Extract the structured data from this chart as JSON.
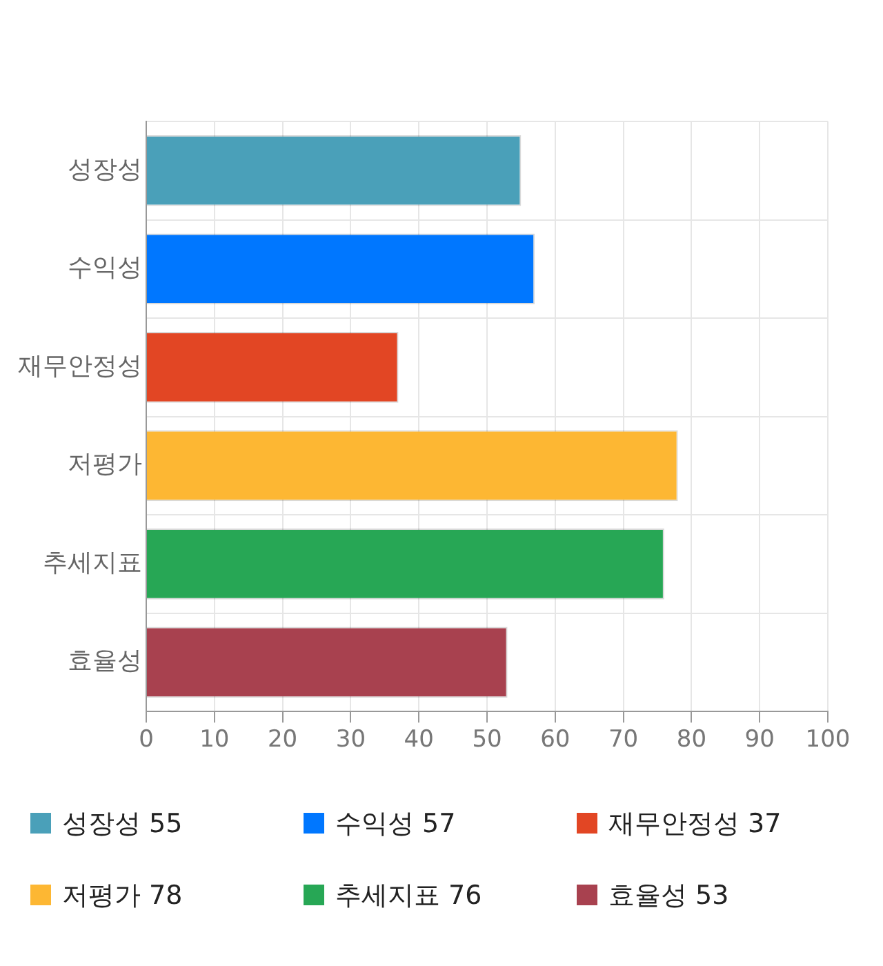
{
  "chart_data": {
    "type": "bar",
    "orientation": "horizontal",
    "categories": [
      "성장성",
      "수익성",
      "재무안정성",
      "저평가",
      "추세지표",
      "효율성"
    ],
    "values": [
      55,
      57,
      37,
      78,
      76,
      53
    ],
    "colors": [
      "#4aa0b9",
      "#0077ff",
      "#e24624",
      "#fdb733",
      "#27a755",
      "#a8414f"
    ],
    "xlim": [
      0,
      100
    ],
    "xticks": [
      0,
      10,
      20,
      30,
      40,
      50,
      60,
      70,
      80,
      90,
      100
    ],
    "grid": true,
    "value_labels": [
      "55",
      "57",
      "37",
      "78",
      "76",
      "53"
    ]
  }
}
